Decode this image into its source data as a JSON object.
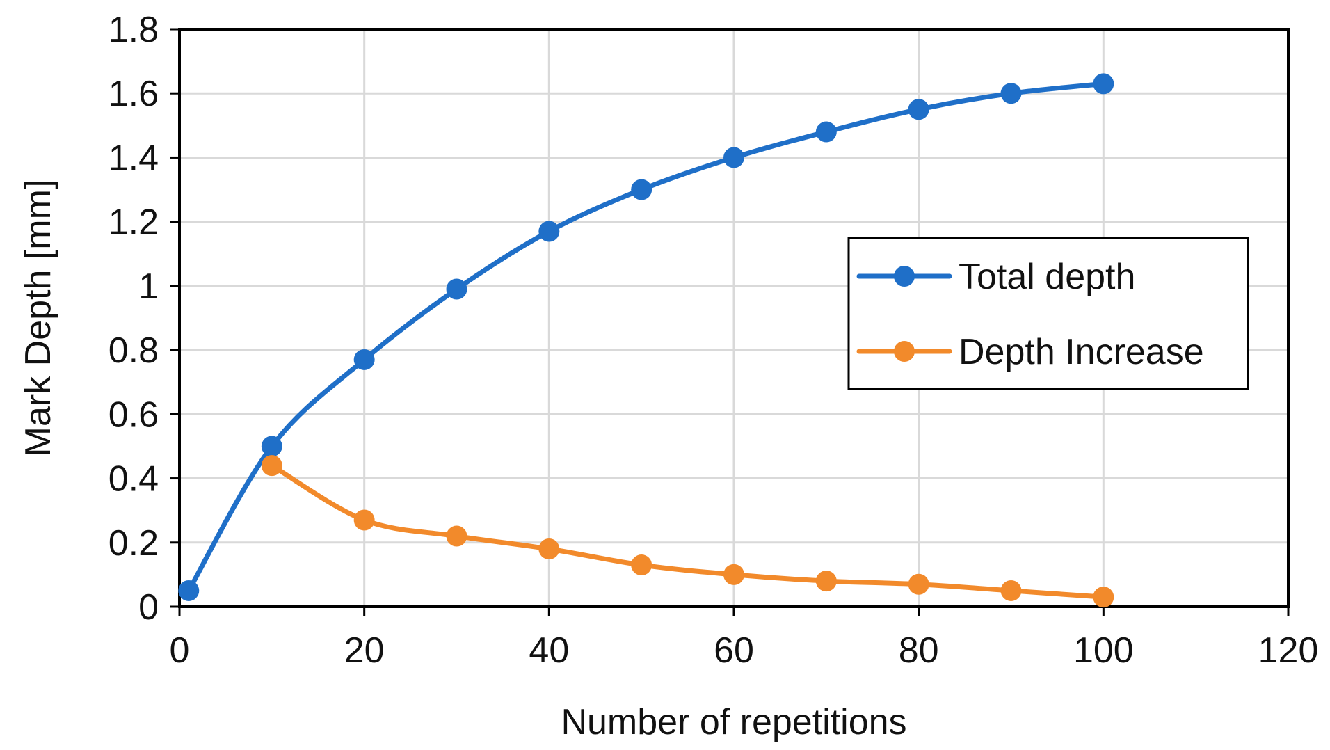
{
  "chart_data": {
    "type": "line",
    "xlabel": "Number of repetitions",
    "ylabel": "Mark Depth [mm]",
    "xlim": [
      0,
      120
    ],
    "ylim": [
      0,
      1.8
    ],
    "xticks": [
      0,
      20,
      40,
      60,
      80,
      100,
      120
    ],
    "yticks": [
      0,
      0.2,
      0.4,
      0.6,
      0.8,
      1,
      1.2,
      1.4,
      1.6,
      1.8
    ],
    "xtick_labels": [
      "0",
      "20",
      "40",
      "60",
      "80",
      "100",
      "120"
    ],
    "ytick_labels": [
      "0",
      "0.2",
      "0.4",
      "0.6",
      "0.8",
      "1",
      "1.2",
      "1.4",
      "1.6",
      "1.8"
    ],
    "grid": true,
    "legend_position": "right",
    "series": [
      {
        "name": "Total depth",
        "color": "#1f6fc8",
        "x": [
          1,
          10,
          20,
          30,
          40,
          50,
          60,
          70,
          80,
          90,
          100
        ],
        "y": [
          0.05,
          0.5,
          0.77,
          0.99,
          1.17,
          1.3,
          1.4,
          1.48,
          1.55,
          1.6,
          1.63
        ]
      },
      {
        "name": "Depth Increase",
        "color": "#f28a2b",
        "x": [
          10,
          20,
          30,
          40,
          50,
          60,
          70,
          80,
          90,
          100
        ],
        "y": [
          0.44,
          0.27,
          0.22,
          0.18,
          0.13,
          0.1,
          0.08,
          0.07,
          0.05,
          0.03
        ]
      }
    ]
  }
}
